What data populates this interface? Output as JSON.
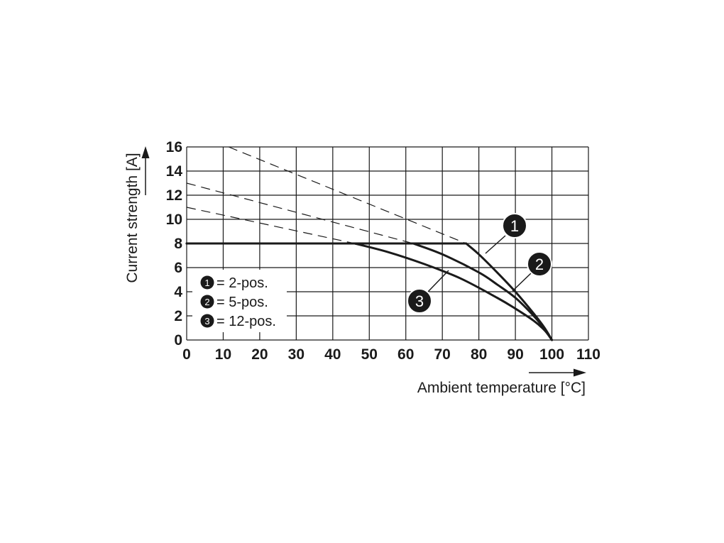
{
  "chart_data": {
    "type": "line",
    "xlabel": "Ambient temperature [°C]",
    "ylabel": "Current strength [A]",
    "xlim": [
      0,
      110
    ],
    "ylim": [
      0,
      16
    ],
    "x_ticks": [
      "0",
      "10",
      "20",
      "30",
      "40",
      "50",
      "60",
      "70",
      "80",
      "90",
      "100",
      "110"
    ],
    "y_ticks": [
      "0",
      "2",
      "4",
      "6",
      "8",
      "10",
      "12",
      "14",
      "16"
    ],
    "grid": true,
    "colors": {
      "grid": "#1a1a1a",
      "curve": "#1a1a1a",
      "badge": "#1a1a1a",
      "badge_text": "#ffffff"
    },
    "legend": {
      "placement": "bottom-left",
      "entries": [
        {
          "marker": "1",
          "label": "= 2-pos."
        },
        {
          "marker": "2",
          "label": "= 5-pos."
        },
        {
          "marker": "3",
          "label": "= 12-pos."
        }
      ]
    },
    "series": [
      {
        "id": "1",
        "x": [
          0,
          76.5,
          80,
          85,
          90,
          95,
          98,
          100
        ],
        "y": [
          8,
          8,
          7.1,
          5.6,
          4.0,
          2.2,
          1.0,
          0
        ]
      },
      {
        "id": "2",
        "x": [
          0,
          62,
          70,
          80,
          85,
          90,
          95,
          98,
          100
        ],
        "y": [
          8,
          8,
          7.1,
          5.6,
          4.6,
          3.5,
          2.0,
          0.9,
          0
        ]
      },
      {
        "id": "3",
        "x": [
          0,
          46,
          55,
          65,
          75,
          85,
          90,
          95,
          98,
          100
        ],
        "y": [
          8,
          8,
          7.3,
          6.3,
          5.1,
          3.5,
          2.6,
          1.6,
          0.8,
          0
        ]
      }
    ],
    "extrapolations": [
      {
        "id": "1",
        "x": [
          11.5,
          76.5
        ],
        "y": [
          16,
          8
        ]
      },
      {
        "id": "2",
        "x": [
          0,
          62
        ],
        "y": [
          13,
          8
        ]
      },
      {
        "id": "3",
        "x": [
          0,
          46
        ],
        "y": [
          11,
          8
        ]
      }
    ],
    "annotations": [
      {
        "label": "1",
        "x": 82,
        "y": 7.4
      },
      {
        "label": "2",
        "x": 89.5,
        "y": 4.2
      },
      {
        "label": "3",
        "x": 71,
        "y": 5.8
      }
    ]
  }
}
